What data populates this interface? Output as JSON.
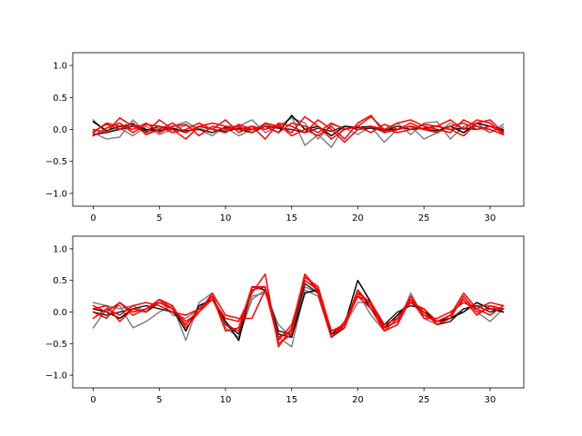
{
  "chart_data": [
    {
      "type": "line",
      "title": "",
      "xlabel": "",
      "ylabel": "",
      "xlim": [
        -1.55,
        32.55
      ],
      "ylim": [
        -1.2,
        1.2
      ],
      "xticks": [
        0,
        5,
        10,
        15,
        20,
        25,
        30
      ],
      "xtick_labels": [
        "0",
        "5",
        "10",
        "15",
        "20",
        "25",
        "30"
      ],
      "yticks": [
        -1.0,
        -0.5,
        0.0,
        0.5,
        1.0
      ],
      "ytick_labels": [
        "−1.0",
        "−0.5",
        "0.0",
        "0.5",
        "1.0"
      ],
      "grid": false,
      "x": [
        0,
        1,
        2,
        3,
        4,
        5,
        6,
        7,
        8,
        9,
        10,
        11,
        12,
        13,
        14,
        15,
        16,
        17,
        18,
        19,
        20,
        21,
        22,
        23,
        24,
        25,
        26,
        27,
        28,
        29,
        30,
        31
      ],
      "series": [
        {
          "color": "#808080",
          "values": [
            0.15,
            -0.05,
            0.02,
            -0.1,
            0.05,
            -0.08,
            0.0,
            0.06,
            0.02,
            -0.05,
            0.03,
            -0.1,
            0.0,
            0.08,
            0.02,
            0.2,
            -0.25,
            -0.08,
            -0.28,
            0.05,
            0.0,
            0.04,
            -0.2,
            0.0,
            0.05,
            -0.15,
            -0.05,
            0.1,
            0.0,
            0.05,
            -0.05,
            0.08
          ]
        },
        {
          "color": "#808080",
          "values": [
            -0.05,
            -0.15,
            -0.12,
            0.15,
            -0.05,
            0.02,
            0.05,
            0.12,
            0.0,
            -0.1,
            0.05,
            0.05,
            0.15,
            -0.05,
            0.05,
            0.18,
            0.1,
            -0.15,
            0.08,
            0.02,
            -0.08,
            0.05,
            -0.05,
            0.1,
            -0.08,
            0.1,
            0.12,
            -0.15,
            0.05,
            0.1,
            -0.05,
            0.04
          ]
        },
        {
          "color": "#000000",
          "values": [
            0.12,
            -0.02,
            0.05,
            0.08,
            0.0,
            -0.02,
            0.02,
            -0.05,
            0.05,
            0.0,
            -0.03,
            0.02,
            0.0,
            0.05,
            -0.05,
            0.22,
            0.0,
            0.05,
            -0.1,
            0.05,
            0.03,
            0.05,
            0.0,
            0.0,
            0.05,
            0.0,
            -0.02,
            0.05,
            -0.05,
            0.1,
            0.05,
            -0.02
          ]
        },
        {
          "color": "#202020",
          "values": [
            -0.08,
            -0.05,
            0.0,
            0.05,
            -0.02,
            0.05,
            0.0,
            -0.02,
            0.0,
            -0.05,
            0.03,
            0.0,
            -0.05,
            0.05,
            0.02,
            0.0,
            -0.05,
            0.02,
            -0.03,
            0.05,
            0.0,
            0.02,
            -0.02,
            0.05,
            0.0,
            0.02,
            0.05,
            0.0,
            0.02,
            0.0,
            0.05,
            0.0
          ]
        },
        {
          "color": "#ff0000",
          "values": [
            -0.05,
            0.1,
            0.05,
            0.0,
            0.1,
            -0.05,
            0.05,
            0.08,
            -0.1,
            0.05,
            0.0,
            0.05,
            -0.05,
            0.1,
            0.05,
            -0.05,
            0.2,
            0.05,
            -0.15,
            0.0,
            0.05,
            0.2,
            0.0,
            0.1,
            0.15,
            0.05,
            0.0,
            -0.05,
            0.15,
            0.05,
            0.0,
            -0.08
          ]
        },
        {
          "color": "#ff0000",
          "values": [
            0.0,
            -0.05,
            0.18,
            0.05,
            -0.05,
            0.15,
            0.0,
            -0.15,
            0.05,
            0.0,
            0.15,
            -0.05,
            0.05,
            0.0,
            0.08,
            -0.1,
            0.0,
            -0.1,
            0.05,
            -0.15,
            0.1,
            0.22,
            -0.05,
            0.0,
            0.1,
            0.0,
            0.05,
            0.15,
            0.0,
            0.15,
            0.1,
            -0.08
          ]
        },
        {
          "color": "#ff0000",
          "values": [
            -0.03,
            0.08,
            0.0,
            0.1,
            -0.08,
            0.0,
            0.1,
            -0.05,
            0.05,
            0.1,
            0.05,
            0.0,
            0.05,
            -0.15,
            0.1,
            0.05,
            -0.05,
            0.15,
            0.0,
            -0.2,
            0.0,
            0.05,
            0.0,
            -0.05,
            0.0,
            0.08,
            0.05,
            0.0,
            -0.1,
            0.1,
            0.15,
            -0.05
          ]
        },
        {
          "color": "#ff0000",
          "values": [
            -0.1,
            0.02,
            0.1,
            -0.05,
            0.08,
            0.05,
            -0.05,
            0.0,
            0.1,
            0.0,
            -0.05,
            0.08,
            0.0,
            0.05,
            -0.05,
            0.1,
            0.05,
            -0.05,
            0.1,
            0.0,
            0.05,
            -0.05,
            0.08,
            0.0,
            0.05,
            0.0,
            -0.05,
            0.05,
            0.1,
            0.0,
            0.05,
            -0.05
          ]
        }
      ]
    },
    {
      "type": "line",
      "title": "",
      "xlabel": "",
      "ylabel": "",
      "xlim": [
        -1.55,
        32.55
      ],
      "ylim": [
        -1.2,
        1.2
      ],
      "xticks": [
        0,
        5,
        10,
        15,
        20,
        25,
        30
      ],
      "xtick_labels": [
        "0",
        "5",
        "10",
        "15",
        "20",
        "25",
        "30"
      ],
      "yticks": [
        -1.0,
        -0.5,
        0.0,
        0.5,
        1.0
      ],
      "ytick_labels": [
        "−1.0",
        "−0.5",
        "0.0",
        "0.5",
        "1.0"
      ],
      "grid": false,
      "x": [
        0,
        1,
        2,
        3,
        4,
        5,
        6,
        7,
        8,
        9,
        10,
        11,
        12,
        13,
        14,
        15,
        16,
        17,
        18,
        19,
        20,
        21,
        22,
        23,
        24,
        25,
        26,
        27,
        28,
        29,
        30,
        31
      ],
      "series": [
        {
          "color": "#808080",
          "values": [
            -0.25,
            0.05,
            0.1,
            -0.25,
            -0.15,
            0.0,
            0.1,
            -0.45,
            0.15,
            0.3,
            -0.25,
            -0.4,
            0.2,
            0.35,
            -0.4,
            -0.55,
            0.35,
            0.25,
            -0.4,
            -0.15,
            0.3,
            -0.05,
            -0.3,
            -0.2,
            0.3,
            -0.1,
            -0.2,
            -0.05,
            0.2,
            0.0,
            -0.15,
            0.05
          ]
        },
        {
          "color": "#808080",
          "values": [
            0.15,
            0.1,
            0.05,
            0.1,
            0.0,
            0.2,
            -0.05,
            -0.1,
            0.05,
            0.25,
            -0.15,
            -0.35,
            0.25,
            0.3,
            -0.2,
            -0.4,
            0.4,
            0.3,
            -0.3,
            -0.2,
            0.15,
            0.15,
            -0.25,
            -0.05,
            0.2,
            -0.05,
            -0.15,
            -0.1,
            0.05,
            0.1,
            0.1,
            0.0
          ]
        },
        {
          "color": "#000000",
          "values": [
            0.05,
            0.0,
            -0.1,
            0.05,
            0.0,
            0.15,
            0.05,
            -0.3,
            0.1,
            0.2,
            -0.15,
            -0.45,
            0.4,
            0.35,
            -0.35,
            -0.4,
            0.3,
            0.35,
            -0.35,
            -0.2,
            0.5,
            0.15,
            -0.25,
            -0.05,
            0.15,
            0.0,
            -0.15,
            -0.1,
            0.0,
            0.15,
            0.05,
            0.0
          ]
        },
        {
          "color": "#202020",
          "values": [
            0.0,
            -0.05,
            0.0,
            0.05,
            0.1,
            0.05,
            0.0,
            -0.2,
            0.05,
            0.25,
            -0.2,
            -0.35,
            0.35,
            0.4,
            -0.3,
            -0.35,
            0.45,
            0.3,
            -0.4,
            -0.25,
            0.35,
            0.05,
            -0.2,
            0.0,
            0.1,
            0.05,
            -0.2,
            -0.15,
            0.05,
            0.1,
            0.0,
            0.05
          ]
        },
        {
          "color": "#ff0000",
          "values": [
            0.1,
            0.0,
            0.15,
            -0.05,
            0.05,
            0.2,
            0.05,
            -0.15,
            0.0,
            0.2,
            -0.1,
            -0.15,
            0.3,
            0.6,
            -0.55,
            -0.25,
            0.6,
            0.3,
            -0.4,
            -0.2,
            0.35,
            0.1,
            -0.25,
            -0.15,
            0.25,
            -0.05,
            -0.15,
            -0.05,
            0.3,
            0.05,
            -0.05,
            0.1
          ]
        },
        {
          "color": "#ff0000",
          "values": [
            -0.1,
            0.05,
            -0.05,
            0.1,
            0.15,
            0.1,
            0.0,
            -0.05,
            0.05,
            0.25,
            -0.3,
            -0.25,
            0.4,
            0.4,
            -0.4,
            -0.3,
            0.55,
            0.4,
            -0.3,
            -0.25,
            0.3,
            0.15,
            -0.3,
            -0.2,
            0.2,
            0.0,
            -0.2,
            -0.1,
            0.25,
            0.0,
            0.05,
            0.05
          ]
        },
        {
          "color": "#ff0000",
          "values": [
            0.05,
            0.1,
            -0.15,
            0.05,
            0.0,
            0.2,
            0.1,
            -0.25,
            0.0,
            0.3,
            -0.05,
            -0.1,
            -0.1,
            0.35,
            -0.45,
            -0.2,
            0.5,
            0.35,
            -0.4,
            -0.15,
            0.25,
            0.15,
            -0.2,
            -0.1,
            0.15,
            0.05,
            -0.15,
            -0.05,
            0.2,
            -0.05,
            0.1,
            0.05
          ]
        },
        {
          "color": "#ff0000",
          "values": [
            0.0,
            -0.1,
            0.15,
            0.0,
            0.05,
            0.15,
            0.05,
            -0.2,
            0.05,
            0.2,
            -0.2,
            -0.3,
            0.35,
            0.4,
            -0.5,
            -0.35,
            0.6,
            0.35,
            -0.3,
            -0.2,
            0.25,
            0.05,
            -0.3,
            -0.1,
            0.2,
            -0.1,
            -0.1,
            0.0,
            0.15,
            0.05,
            0.15,
            0.1
          ]
        }
      ]
    }
  ]
}
